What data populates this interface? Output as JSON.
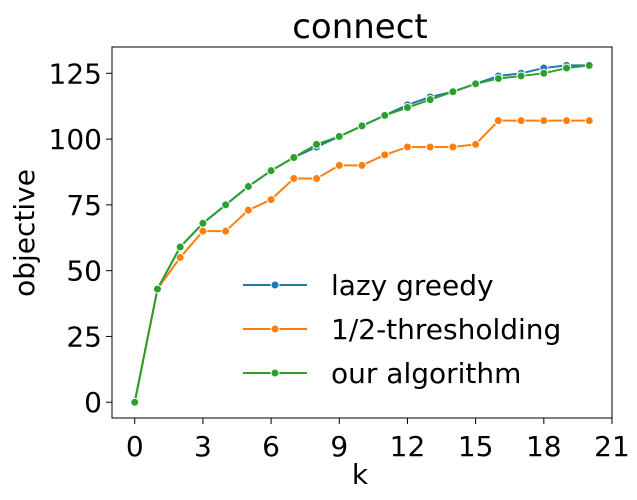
{
  "chart_data": {
    "type": "line",
    "title": "connect",
    "xlabel": "k",
    "ylabel": "objective",
    "xlim": [
      -1,
      21
    ],
    "ylim": [
      -6,
      135
    ],
    "xticks": [
      0,
      3,
      6,
      9,
      12,
      15,
      18,
      21
    ],
    "yticks": [
      0,
      25,
      50,
      75,
      100,
      125
    ],
    "grid": false,
    "legend_position": "lower-right",
    "x": [
      0,
      1,
      2,
      3,
      4,
      5,
      6,
      7,
      8,
      9,
      10,
      11,
      12,
      13,
      14,
      15,
      16,
      17,
      18,
      19,
      20
    ],
    "series": [
      {
        "name": "lazy greedy",
        "color": "#1f77b4",
        "values": [
          0,
          43,
          59,
          68,
          75,
          82,
          88,
          93,
          97,
          101,
          105,
          109,
          113,
          116,
          118,
          121,
          124,
          125,
          127,
          128,
          128
        ]
      },
      {
        "name": "1/2-thresholding",
        "color": "#ff7f0e",
        "values": [
          0,
          43,
          55,
          65,
          65,
          73,
          77,
          85,
          85,
          90,
          90,
          94,
          97,
          97,
          97,
          98,
          107,
          107,
          107,
          107,
          107
        ]
      },
      {
        "name": "our algorithm",
        "color": "#2ca02c",
        "values": [
          0,
          43,
          59,
          68,
          75,
          82,
          88,
          93,
          98,
          101,
          105,
          109,
          112,
          115,
          118,
          121,
          123,
          124,
          125,
          127,
          128
        ]
      }
    ]
  }
}
